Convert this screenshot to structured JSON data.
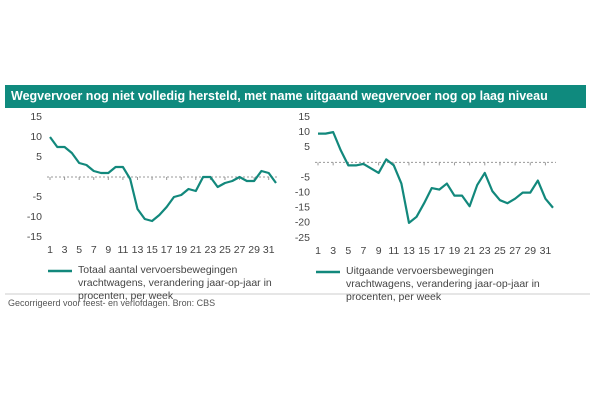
{
  "title": "Wegvervoer nog niet volledig hersteld, met name uitgaand wegvervoer nog op laag niveau",
  "note": "Gecorrigeerd voor feest- en verlofdagen. Bron: CBS",
  "chart_data": [
    {
      "type": "line",
      "x": [
        1,
        2,
        3,
        4,
        5,
        6,
        7,
        8,
        9,
        10,
        11,
        12,
        13,
        14,
        15,
        16,
        17,
        18,
        19,
        20,
        21,
        22,
        23,
        24,
        25,
        26,
        27,
        28,
        29,
        30,
        31,
        32
      ],
      "xlim": [
        1,
        32
      ],
      "xticks": [
        1,
        3,
        5,
        7,
        9,
        11,
        13,
        15,
        17,
        19,
        21,
        23,
        25,
        27,
        29,
        31
      ],
      "ylim": [
        -15,
        15
      ],
      "yticks": [
        15,
        10,
        5,
        -5,
        -10,
        -15
      ],
      "series": [
        {
          "name": "Totaal aantal vervoersbewegingen vrachtwagens, verandering jaar-op-jaar in procenten, per week",
          "color": "#12887c",
          "values": [
            10,
            7.5,
            7.5,
            6,
            3.5,
            3,
            1.5,
            1,
            1,
            2.5,
            2.5,
            -0.5,
            -8,
            -10.5,
            -11,
            -9.5,
            -7.5,
            -5,
            -4.5,
            -3,
            -3.5,
            0,
            0,
            -2.5,
            -1.5,
            -1,
            0,
            -1,
            -1,
            1.5,
            1,
            -1.5
          ]
        }
      ]
    },
    {
      "type": "line",
      "x": [
        1,
        2,
        3,
        4,
        5,
        6,
        7,
        8,
        9,
        10,
        11,
        12,
        13,
        14,
        15,
        16,
        17,
        18,
        19,
        20,
        21,
        22,
        23,
        24,
        25,
        26,
        27,
        28,
        29,
        30,
        31,
        32
      ],
      "xlim": [
        1,
        32
      ],
      "xticks": [
        1,
        3,
        5,
        7,
        9,
        11,
        13,
        15,
        17,
        19,
        21,
        23,
        25,
        27,
        29,
        31
      ],
      "ylim": [
        -25,
        15
      ],
      "yticks": [
        15,
        10,
        5,
        -5,
        -10,
        -15,
        -20,
        -25
      ],
      "series": [
        {
          "name": "Uitgaande vervoersbewegingen vrachtwagens, verandering jaar-op-jaar in procenten, per week",
          "color": "#12887c",
          "values": [
            9.5,
            9.5,
            10,
            4,
            -1,
            -1,
            -0.5,
            -2,
            -3.5,
            1,
            -1,
            -7,
            -20,
            -18,
            -13.5,
            -8.5,
            -9,
            -7,
            -11,
            -11,
            -14.5,
            -7.5,
            -3.5,
            -9.5,
            -12.5,
            -13.5,
            -12,
            -10,
            -10,
            -6,
            -12,
            -15
          ]
        }
      ]
    }
  ]
}
